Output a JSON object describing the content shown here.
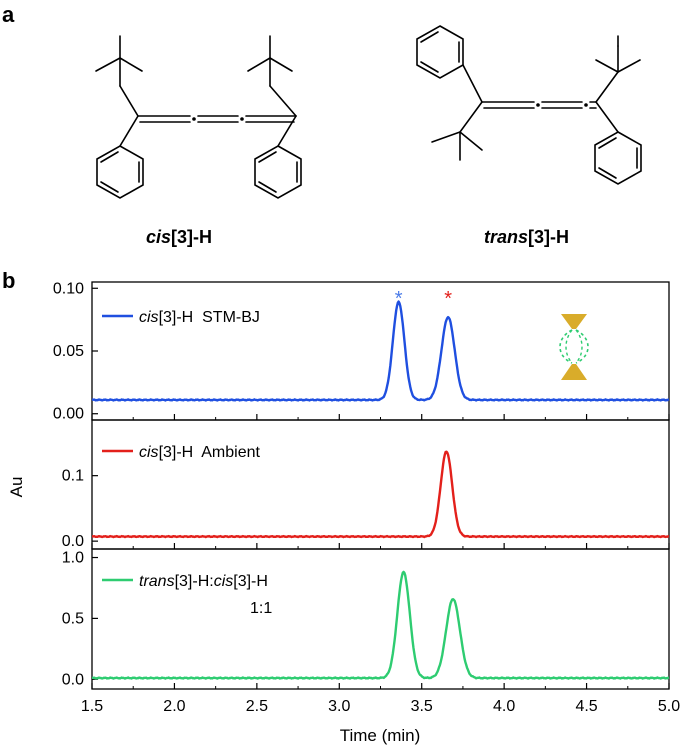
{
  "panels": {
    "a_label": "a",
    "b_label": "b"
  },
  "molecules": {
    "left": {
      "italic": "cis",
      "rest": "[3]-H"
    },
    "right": {
      "italic": "trans",
      "rest": "[3]-H"
    }
  },
  "colors": {
    "blue": "#1f4fe0",
    "red": "#e3201b",
    "green": "#2ecc71",
    "gold": "#d9ac2a",
    "blue_star": "#4a7be8",
    "red_star": "#e3201b"
  },
  "chart_data": [
    {
      "type": "line",
      "panel": "top",
      "series": [
        {
          "name": "cis[3]-H  STM-BJ",
          "legend_italic": "cis",
          "legend_rest": "[3]-H  STM-BJ",
          "baseline": 0.011,
          "peaks": [
            {
              "x": 3.36,
              "y": 0.089,
              "width": 0.035
            },
            {
              "x": 3.66,
              "y": 0.077,
              "width": 0.04
            }
          ]
        }
      ],
      "xlim": [
        1.5,
        5.0
      ],
      "ylim": [
        -0.005,
        0.105
      ],
      "yticks": [
        "0.00",
        "0.05",
        "0.10"
      ],
      "ytick_values": [
        0.0,
        0.05,
        0.1
      ],
      "annotations": [
        {
          "text": "*",
          "x": 3.36,
          "color": "blue_star"
        },
        {
          "text": "*",
          "x": 3.66,
          "color": "red_star"
        }
      ]
    },
    {
      "type": "line",
      "panel": "middle",
      "series": [
        {
          "name": "cis[3]-H  Ambient",
          "legend_italic": "cis",
          "legend_rest": "[3]-H  Ambient",
          "baseline": 0.007,
          "peaks": [
            {
              "x": 3.65,
              "y": 0.137,
              "width": 0.035
            }
          ]
        }
      ],
      "xlim": [
        1.5,
        5.0
      ],
      "ylim": [
        -0.012,
        0.185
      ],
      "yticks": [
        "0.0",
        "0.1"
      ],
      "ytick_values": [
        0.0,
        0.1
      ],
      "ylabel": "Au"
    },
    {
      "type": "line",
      "panel": "bottom",
      "series": [
        {
          "name": "trans[3]-H:cis[3]-H 1:1",
          "legend_italic": "trans",
          "legend_mid": "[3]-H:",
          "legend_italic2": "cis",
          "legend_rest": "[3]-H",
          "legend_line2": "1:1",
          "baseline": 0.01,
          "peaks": [
            {
              "x": 3.39,
              "y": 0.88,
              "width": 0.038
            },
            {
              "x": 3.69,
              "y": 0.66,
              "width": 0.042
            }
          ]
        }
      ],
      "xlim": [
        1.5,
        5.0
      ],
      "ylim": [
        -0.08,
        1.07
      ],
      "yticks": [
        "0.0",
        "0.5",
        "1.0"
      ],
      "ytick_values": [
        0.0,
        0.5,
        1.0
      ],
      "xticks": [
        "1.5",
        "2.0",
        "2.5",
        "3.0",
        "3.5",
        "4.0",
        "4.5",
        "5.0"
      ],
      "xtick_values": [
        1.5,
        2.0,
        2.5,
        3.0,
        3.5,
        4.0,
        4.5,
        5.0
      ],
      "xlabel": "Time (min)"
    }
  ]
}
